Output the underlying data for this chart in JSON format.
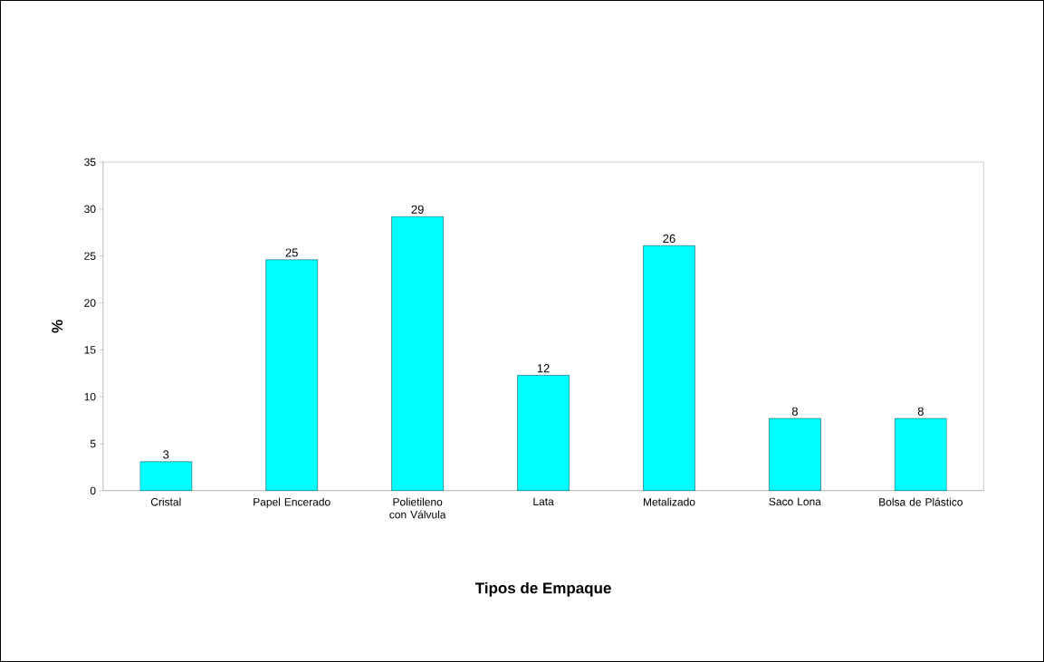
{
  "chart_data": {
    "type": "bar",
    "xlabel": "Tipos de Empaque",
    "ylabel": "%",
    "categories": [
      "Cristal",
      "Papel Encerado",
      "Polietileno con Válvula",
      "Lata",
      "Metalizado",
      "Saco Lona",
      "Bolsa de Plástico"
    ],
    "values": [
      3.1,
      24.6,
      29.2,
      12.3,
      26.1,
      7.7,
      7.7
    ],
    "value_labels": [
      "3",
      "25",
      "29",
      "12",
      "26",
      "8",
      "8"
    ],
    "color": "#00ffff",
    "ylim": [
      0,
      35
    ],
    "yticks": [
      0,
      5,
      10,
      15,
      20,
      25,
      30,
      35
    ]
  }
}
